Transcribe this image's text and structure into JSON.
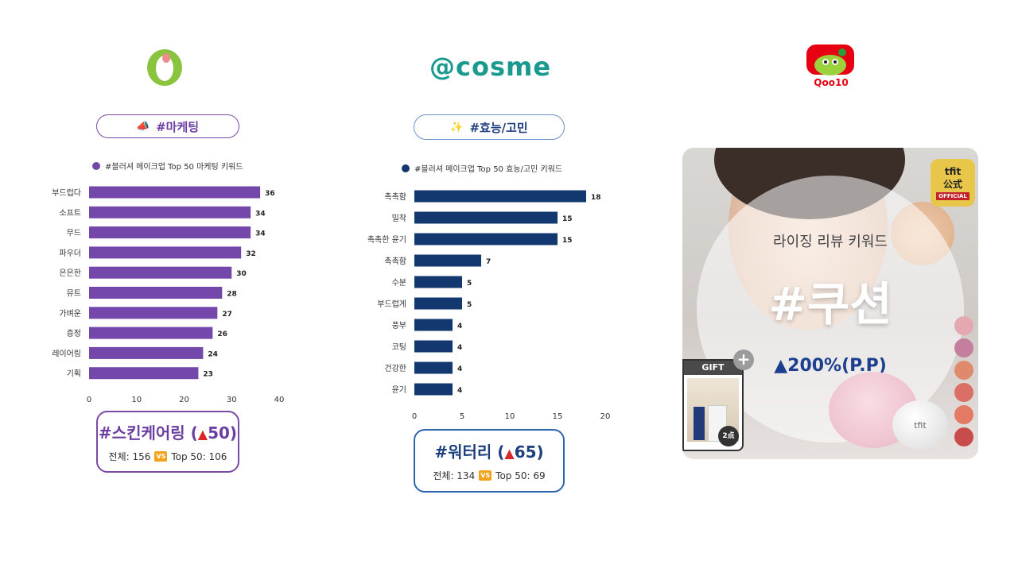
{
  "colors": {
    "purple": "#7448ab",
    "purple_pill_border": "#7a4aa9",
    "navy": "#12386f",
    "navy_pill_border": "#6c8fcb",
    "oliveyoung_green": "#8ac43f",
    "cosme_teal": "#1a9a8e",
    "qoo10_red": "#e60012",
    "triangle_red": "#d62828"
  },
  "logos": {
    "oliveyoung": {
      "icon": "oliveyoung-logo-icon"
    },
    "cosme": {
      "text": "@cosme"
    },
    "qoo10": {
      "text": "Qoo10",
      "icon": "qoo10-mascot-icon"
    }
  },
  "panels": [
    {
      "pill": {
        "emoji": "📣",
        "label": "#마케팅"
      },
      "legend": "#블러셔 메이크업 Top 50 마케팅 키워드",
      "callout": {
        "keyword": "#스킨케어링 (",
        "triangle": "▲",
        "change": "50)",
        "total_label": "전체: 156",
        "vs": "VS",
        "top_label": "Top 50: 106"
      }
    },
    {
      "pill": {
        "emoji": "✨",
        "label": "#효능/고민"
      },
      "legend": "#블러셔 메이크업 Top 50 효능/고민 키워드",
      "callout": {
        "keyword": "#워터리 (",
        "triangle": "▲",
        "change": "65)",
        "total_label": "전체: 134",
        "vs": "VS",
        "top_label": "Top 50: 69"
      }
    }
  ],
  "chart_data": [
    {
      "type": "bar",
      "orientation": "horizontal",
      "categories": [
        "부드럽다",
        "소프트",
        "무드",
        "파우더",
        "은은한",
        "뮤트",
        "가벼운",
        "증정",
        "레이어링",
        "기획"
      ],
      "values": [
        36,
        34,
        34,
        32,
        30,
        28,
        27,
        26,
        24,
        23
      ],
      "xlim": [
        0,
        40
      ],
      "xticks": [
        0,
        10,
        20,
        30,
        40
      ],
      "legend_placement": "top",
      "grid": false
    },
    {
      "type": "bar",
      "orientation": "horizontal",
      "categories": [
        "촉촉함",
        "밀착",
        "촉촉한 윤기",
        "촉촉함",
        "수분",
        "부드럽게",
        "풍부",
        "코팅",
        "건강한",
        "윤기"
      ],
      "values": [
        18,
        15,
        15,
        7,
        5,
        5,
        4,
        4,
        4,
        4
      ],
      "xlim": [
        0,
        20
      ],
      "xticks": [
        0,
        5,
        10,
        15,
        20
      ],
      "legend_placement": "top",
      "grid": false
    }
  ],
  "promo": {
    "subtitle": "라이징 리뷰 키워드",
    "keyword": "#쿠션",
    "change": "▲200%(P.P)",
    "badge_brand": "tfit",
    "badge_line1": "公式",
    "badge_line2": "OFFICIAL",
    "gift_label": "GIFT",
    "gift_plus": "+",
    "gift_count": "2点",
    "compact_brand": "tfit"
  }
}
